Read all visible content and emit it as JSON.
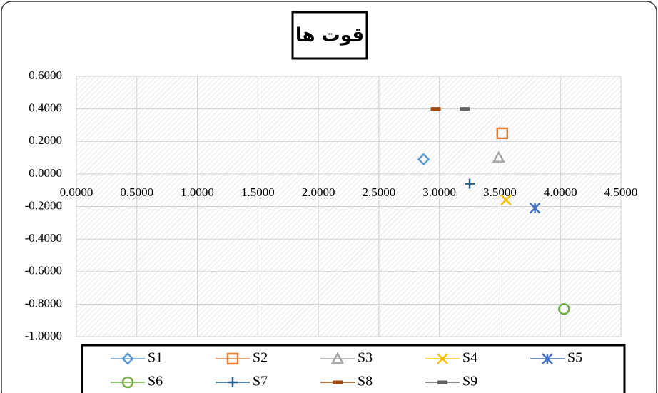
{
  "chart_data": {
    "type": "scatter",
    "title": "قوت ها",
    "xlim": [
      0,
      4.5
    ],
    "ylim": [
      -1,
      0.6
    ],
    "grid": true,
    "legend": "bottom",
    "xticks": [
      {
        "value": 0,
        "label": "0.0000"
      },
      {
        "value": 0.5,
        "label": "0.5000"
      },
      {
        "value": 1,
        "label": "1.0000"
      },
      {
        "value": 1.5,
        "label": "1.5000"
      },
      {
        "value": 2,
        "label": "2.0000"
      },
      {
        "value": 2.5,
        "label": "2.5000"
      },
      {
        "value": 3,
        "label": "3.0000"
      },
      {
        "value": 3.5,
        "label": "3.5000"
      },
      {
        "value": 4,
        "label": "4.0000"
      },
      {
        "value": 4.5,
        "label": "4.5000"
      }
    ],
    "yticks": [
      {
        "value": 0.6,
        "label": "0.6000"
      },
      {
        "value": 0.4,
        "label": "0.4000"
      },
      {
        "value": 0.2,
        "label": "0.2000"
      },
      {
        "value": 0,
        "label": "0.0000"
      },
      {
        "value": -0.2,
        "label": "-0.2000"
      },
      {
        "value": -0.4,
        "label": "-0.4000"
      },
      {
        "value": -0.6,
        "label": "-0.6000"
      },
      {
        "value": -0.8,
        "label": "-0.8000"
      },
      {
        "value": -1,
        "label": "-1.0000"
      }
    ],
    "series": [
      {
        "name": "S1",
        "color": "#5b9bd5",
        "marker": "diamond",
        "x": [
          2.87
        ],
        "values": [
          0.09
        ]
      },
      {
        "name": "S2",
        "color": "#ed7d31",
        "marker": "square",
        "x": [
          3.52
        ],
        "values": [
          0.25
        ]
      },
      {
        "name": "S3",
        "color": "#a5a5a5",
        "marker": "triangle",
        "x": [
          3.49
        ],
        "values": [
          0.1
        ]
      },
      {
        "name": "S4",
        "color": "#ffc000",
        "marker": "x",
        "x": [
          3.55
        ],
        "values": [
          -0.16
        ]
      },
      {
        "name": "S5",
        "color": "#4472c4",
        "marker": "star",
        "x": [
          3.79
        ],
        "values": [
          -0.21
        ]
      },
      {
        "name": "S6",
        "color": "#70ad47",
        "marker": "circle",
        "x": [
          4.03
        ],
        "values": [
          -0.83
        ]
      },
      {
        "name": "S7",
        "color": "#255e91",
        "marker": "plus",
        "x": [
          3.25
        ],
        "values": [
          -0.06
        ]
      },
      {
        "name": "S8",
        "color": "#9e480e",
        "marker": "dash",
        "x": [
          2.97
        ],
        "values": [
          0.4
        ]
      },
      {
        "name": "S9",
        "color": "#636363",
        "marker": "dash",
        "x": [
          3.21
        ],
        "values": [
          0.4
        ]
      }
    ]
  }
}
